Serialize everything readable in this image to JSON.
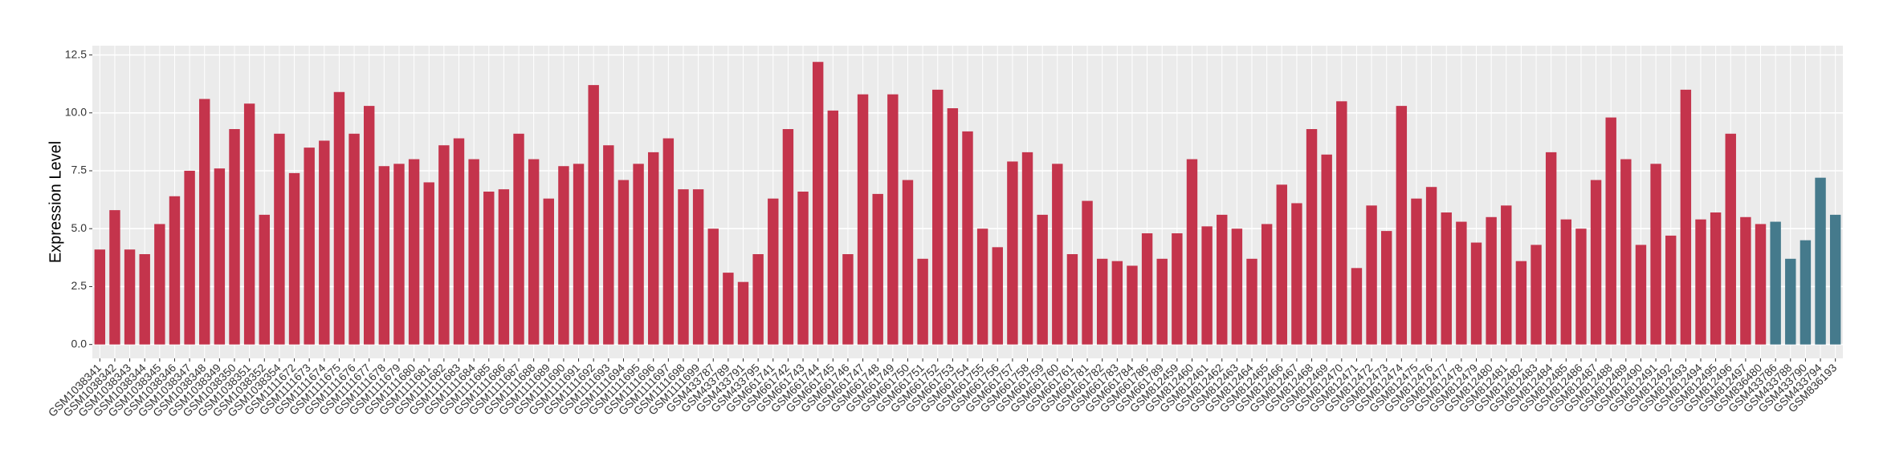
{
  "chart_data": {
    "type": "bar",
    "y_label": "Expression Level",
    "categories": [
      "GSM1038341",
      "GSM1038342",
      "GSM1038343",
      "GSM1038344",
      "GSM1038345",
      "GSM1038346",
      "GSM1038347",
      "GSM1038348",
      "GSM1038349",
      "GSM1038350",
      "GSM1038351",
      "GSM1038352",
      "GSM1038354",
      "GSM1111672",
      "GSM1111673",
      "GSM1111674",
      "GSM1111675",
      "GSM1111676",
      "GSM1111677",
      "GSM1111678",
      "GSM1111679",
      "GSM1111680",
      "GSM1111681",
      "GSM1111682",
      "GSM1111683",
      "GSM1111684",
      "GSM1111685",
      "GSM1111686",
      "GSM1111687",
      "GSM1111688",
      "GSM1111689",
      "GSM1111690",
      "GSM1111691",
      "GSM1111692",
      "GSM1111693",
      "GSM1111694",
      "GSM1111695",
      "GSM1111696",
      "GSM1111697",
      "GSM1111698",
      "GSM1111699",
      "GSM433787",
      "GSM433789",
      "GSM433791",
      "GSM433795",
      "GSM661741",
      "GSM661742",
      "GSM661743",
      "GSM661744",
      "GSM661745",
      "GSM661746",
      "GSM661747",
      "GSM661748",
      "GSM661749",
      "GSM661750",
      "GSM661751",
      "GSM661752",
      "GSM661753",
      "GSM661754",
      "GSM661755",
      "GSM661756",
      "GSM661757",
      "GSM661758",
      "GSM661759",
      "GSM661760",
      "GSM661761",
      "GSM661781",
      "GSM661782",
      "GSM661783",
      "GSM661784",
      "GSM661786",
      "GSM661789",
      "GSM812459",
      "GSM812460",
      "GSM812461",
      "GSM812462",
      "GSM812463",
      "GSM812464",
      "GSM812465",
      "GSM812466",
      "GSM812467",
      "GSM812468",
      "GSM812469",
      "GSM812470",
      "GSM812471",
      "GSM812472",
      "GSM812473",
      "GSM812474",
      "GSM812475",
      "GSM812476",
      "GSM812477",
      "GSM812478",
      "GSM812479",
      "GSM812480",
      "GSM812481",
      "GSM812482",
      "GSM812483",
      "GSM812484",
      "GSM812485",
      "GSM812486",
      "GSM812487",
      "GSM812488",
      "GSM812489",
      "GSM812490",
      "GSM812491",
      "GSM812492",
      "GSM812493",
      "GSM812494",
      "GSM812495",
      "GSM812496",
      "GSM812497",
      "GSM836480",
      "GSM433786",
      "GSM433788",
      "GSM433790",
      "GSM433794",
      "GSM836193"
    ],
    "values": [
      4.1,
      5.8,
      4.1,
      3.9,
      5.2,
      6.4,
      7.5,
      10.6,
      7.6,
      9.3,
      10.4,
      5.6,
      9.1,
      7.4,
      8.5,
      8.8,
      10.9,
      9.1,
      10.3,
      7.7,
      7.8,
      8.0,
      7.0,
      8.6,
      8.9,
      8.0,
      6.6,
      6.7,
      9.1,
      8.0,
      6.3,
      7.7,
      7.8,
      11.2,
      8.6,
      7.1,
      7.8,
      8.3,
      8.9,
      6.7,
      6.7,
      5.0,
      3.1,
      2.7,
      3.9,
      6.3,
      9.3,
      6.6,
      12.2,
      10.1,
      3.9,
      10.8,
      6.5,
      10.8,
      7.1,
      3.7,
      11.0,
      10.2,
      9.2,
      5.0,
      4.2,
      7.9,
      8.3,
      5.6,
      7.8,
      3.9,
      6.2,
      3.7,
      3.6,
      3.4,
      4.8,
      3.7,
      4.8,
      8.0,
      5.1,
      5.6,
      5.0,
      3.7,
      5.2,
      6.9,
      6.1,
      9.3,
      8.2,
      10.5,
      3.3,
      6.0,
      4.9,
      10.3,
      6.3,
      6.8,
      5.7,
      5.3,
      4.4,
      5.5,
      6.0,
      3.6,
      4.3,
      8.3,
      5.4,
      5.0,
      7.1,
      9.8,
      8.0,
      4.3,
      7.8,
      4.7,
      11.0,
      5.4,
      5.7,
      9.1,
      5.5,
      5.2,
      5.3,
      3.7,
      4.5,
      7.2,
      5.6
    ],
    "colors": [
      "#c4344c",
      "#c4344c",
      "#c4344c",
      "#c4344c",
      "#c4344c",
      "#c4344c",
      "#c4344c",
      "#c4344c",
      "#c4344c",
      "#c4344c",
      "#c4344c",
      "#c4344c",
      "#c4344c",
      "#c4344c",
      "#c4344c",
      "#c4344c",
      "#c4344c",
      "#c4344c",
      "#c4344c",
      "#c4344c",
      "#c4344c",
      "#c4344c",
      "#c4344c",
      "#c4344c",
      "#c4344c",
      "#c4344c",
      "#c4344c",
      "#c4344c",
      "#c4344c",
      "#c4344c",
      "#c4344c",
      "#c4344c",
      "#c4344c",
      "#c4344c",
      "#c4344c",
      "#c4344c",
      "#c4344c",
      "#c4344c",
      "#c4344c",
      "#c4344c",
      "#c4344c",
      "#c4344c",
      "#c4344c",
      "#c4344c",
      "#c4344c",
      "#c4344c",
      "#c4344c",
      "#c4344c",
      "#c4344c",
      "#c4344c",
      "#c4344c",
      "#c4344c",
      "#c4344c",
      "#c4344c",
      "#c4344c",
      "#c4344c",
      "#c4344c",
      "#c4344c",
      "#c4344c",
      "#c4344c",
      "#c4344c",
      "#c4344c",
      "#c4344c",
      "#c4344c",
      "#c4344c",
      "#c4344c",
      "#c4344c",
      "#c4344c",
      "#c4344c",
      "#c4344c",
      "#c4344c",
      "#c4344c",
      "#c4344c",
      "#c4344c",
      "#c4344c",
      "#c4344c",
      "#c4344c",
      "#c4344c",
      "#c4344c",
      "#c4344c",
      "#c4344c",
      "#c4344c",
      "#c4344c",
      "#c4344c",
      "#c4344c",
      "#c4344c",
      "#c4344c",
      "#c4344c",
      "#c4344c",
      "#c4344c",
      "#c4344c",
      "#c4344c",
      "#c4344c",
      "#c4344c",
      "#c4344c",
      "#c4344c",
      "#c4344c",
      "#c4344c",
      "#c4344c",
      "#c4344c",
      "#c4344c",
      "#c4344c",
      "#c4344c",
      "#c4344c",
      "#c4344c",
      "#c4344c",
      "#c4344c",
      "#c4344c",
      "#c4344c",
      "#c4344c",
      "#c4344c",
      "#c4344c",
      "#457a8c",
      "#457a8c",
      "#457a8c",
      "#457a8c",
      "#457a8c"
    ],
    "ylim": [
      -0.6,
      12.9
    ],
    "yticks": [
      {
        "value": 0,
        "label": "0.0"
      },
      2.5,
      {
        "value": 5,
        "label": "5.0"
      },
      7.5,
      {
        "value": 10,
        "label": "10.0"
      },
      12.5
    ],
    "grid": true
  }
}
